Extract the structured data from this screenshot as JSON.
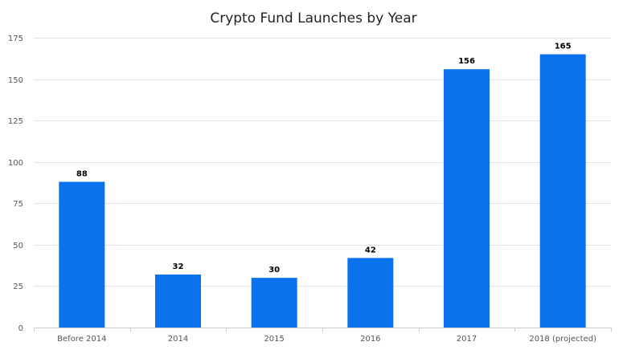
{
  "chart_data": {
    "type": "bar",
    "title": "Crypto Fund Launches by Year",
    "xlabel": "",
    "ylabel": "",
    "categories": [
      "Before 2014",
      "2014",
      "2015",
      "2016",
      "2017",
      "2018 (projected)"
    ],
    "values": [
      88,
      32,
      30,
      42,
      156,
      165
    ],
    "ylim": [
      0,
      175
    ],
    "yticks": [
      0,
      25,
      50,
      75,
      100,
      125,
      150,
      175
    ],
    "grid": true,
    "legend": "none",
    "bar_color": "#0b72ee"
  }
}
